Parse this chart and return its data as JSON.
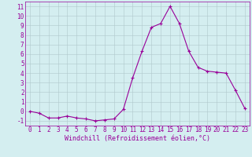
{
  "x": [
    0,
    1,
    2,
    3,
    4,
    5,
    6,
    7,
    8,
    9,
    10,
    11,
    12,
    13,
    14,
    15,
    16,
    17,
    18,
    19,
    20,
    21,
    22,
    23
  ],
  "y": [
    0.0,
    -0.2,
    -0.7,
    -0.7,
    -0.5,
    -0.7,
    -0.8,
    -1.0,
    -0.9,
    -0.8,
    0.2,
    3.5,
    6.3,
    8.8,
    9.2,
    11.0,
    9.2,
    6.3,
    4.6,
    4.2,
    4.1,
    4.0,
    2.2,
    0.3
  ],
  "line_color": "#990099",
  "marker": "+",
  "markersize": 3,
  "linewidth": 0.8,
  "bg_color": "#d4eef0",
  "grid_color": "#b0c8cc",
  "xlabel": "Windchill (Refroidissement éolien,°C)",
  "xlabel_color": "#990099",
  "ylabel_ticks": [
    -1,
    0,
    1,
    2,
    3,
    4,
    5,
    6,
    7,
    8,
    9,
    10,
    11
  ],
  "ylim": [
    -1.5,
    11.5
  ],
  "xlim": [
    -0.5,
    23.5
  ],
  "tick_color": "#990099",
  "tick_fontsize": 5.5,
  "xlabel_fontsize": 6.0
}
